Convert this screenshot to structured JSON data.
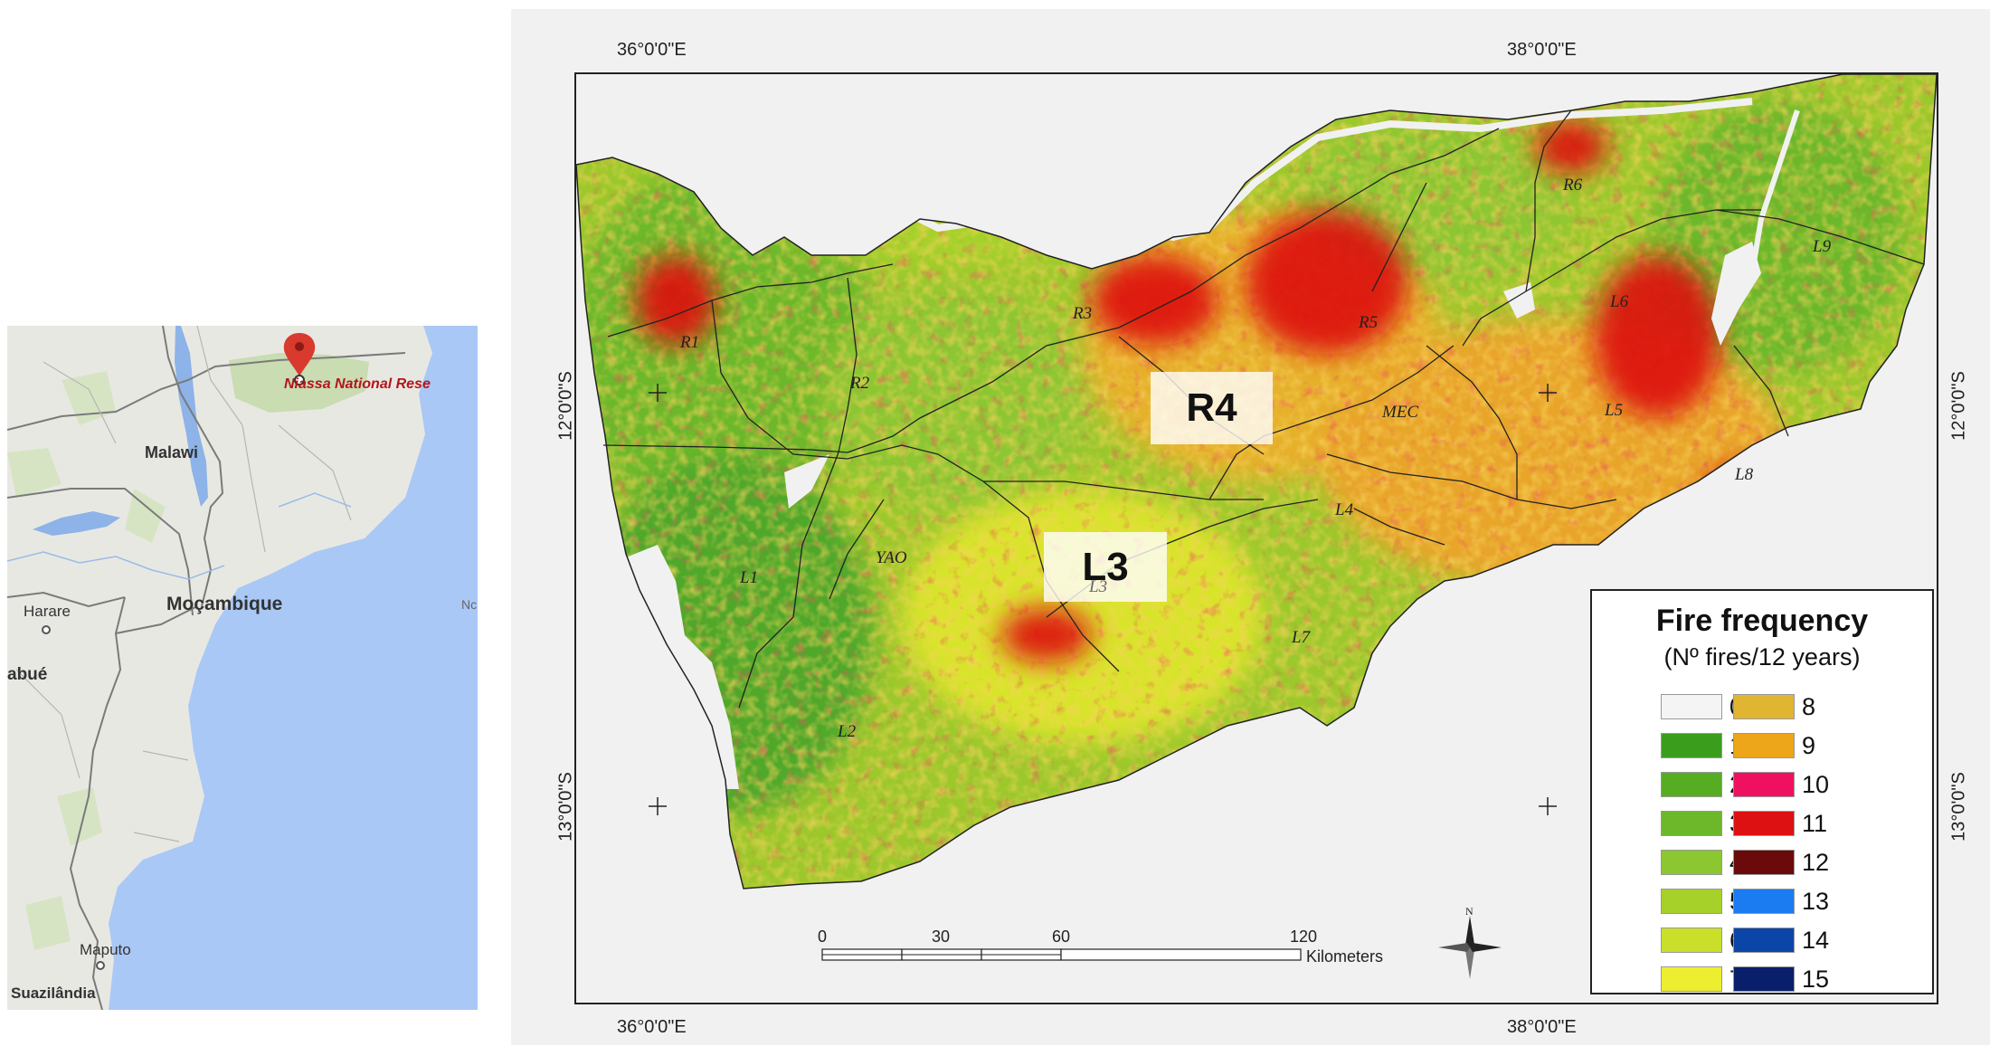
{
  "locator_map": {
    "pin_label": "Niassa National Rese",
    "places": {
      "malawi": "Malawi",
      "mocambique": "Moçambique",
      "harare": "Harare",
      "abue": "abué",
      "maputo": "Maputo",
      "suazilandia": "Suazilândia",
      "edge_label": "Nc"
    },
    "colors": {
      "sea": "#a9c8f5",
      "land": "#e8e8e3",
      "park": "#c9dcb2",
      "lake": "#8db3e8",
      "pin": "#d93a2e"
    }
  },
  "main_map": {
    "graticule": {
      "top_lon_1": "36°0'0\"E",
      "top_lon_2": "38°0'0\"E",
      "bottom_lon_1": "36°0'0\"E",
      "bottom_lon_2": "38°0'0\"E",
      "left_lat_1": "12°0'0\"S",
      "left_lat_2": "13°0'0\"S",
      "right_lat_1": "12°0'0\"S",
      "right_lat_2": "13°0'0\"S"
    },
    "highlight_labels": {
      "r4": "R4",
      "l3": "L3"
    },
    "block_labels": {
      "r1": "R1",
      "r2": "R2",
      "r3": "R3",
      "r5": "R5",
      "r6": "R6",
      "l1": "L1",
      "l2": "L2",
      "l3_small": "L3",
      "l4": "L4",
      "l5": "L5",
      "l6": "L6",
      "l7": "L7",
      "l8": "L8",
      "l9": "L9",
      "mec": "MEC",
      "yao": "YAO"
    },
    "legend": {
      "title": "Fire frequency",
      "subtitle": "(Nº fires/12 years)",
      "classes": [
        {
          "value": "0",
          "color": "#f4f4f4"
        },
        {
          "value": "1",
          "color": "#3a9e1c"
        },
        {
          "value": "2",
          "color": "#56ad22"
        },
        {
          "value": "3",
          "color": "#6cb82a"
        },
        {
          "value": "4",
          "color": "#8cc630"
        },
        {
          "value": "5",
          "color": "#a6d129"
        },
        {
          "value": "6",
          "color": "#c9df2a"
        },
        {
          "value": "7",
          "color": "#eeee30"
        },
        {
          "value": "8",
          "color": "#e0b531"
        },
        {
          "value": "9",
          "color": "#eda51a"
        },
        {
          "value": "10",
          "color": "#f01060"
        },
        {
          "value": "11",
          "color": "#dd1111"
        },
        {
          "value": "12",
          "color": "#6b0a0a"
        },
        {
          "value": "13",
          "color": "#1a7cf0"
        },
        {
          "value": "14",
          "color": "#0b45a8"
        },
        {
          "value": "15",
          "color": "#0a1f6b"
        }
      ]
    },
    "scale_bar": {
      "ticks": [
        "0",
        "30",
        "60",
        "120"
      ],
      "unit": "Kilometers"
    },
    "north_label": "N"
  }
}
